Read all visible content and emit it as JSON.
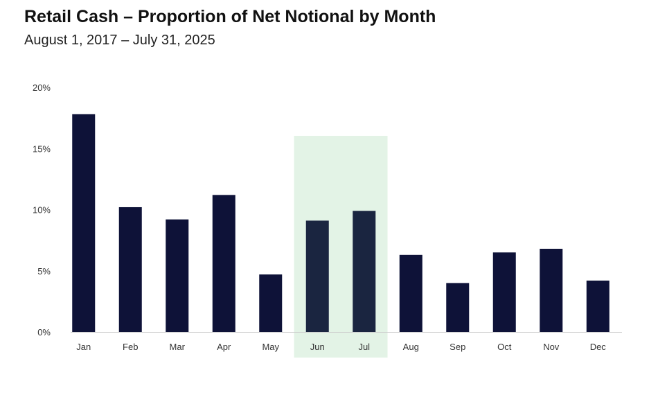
{
  "title": "Retail Cash – Proportion of Net Notional by Month",
  "subtitle": "August 1, 2017 – July 31, 2025",
  "chart_data": {
    "type": "bar",
    "categories": [
      "Jan",
      "Feb",
      "Mar",
      "Apr",
      "May",
      "Jun",
      "Jul",
      "Aug",
      "Sep",
      "Oct",
      "Nov",
      "Dec"
    ],
    "values": [
      17.8,
      10.2,
      9.2,
      11.2,
      4.7,
      9.1,
      9.9,
      6.3,
      4.0,
      6.5,
      6.8,
      4.2
    ],
    "unit": "%",
    "ylim": [
      0,
      20
    ],
    "yticks": [
      0,
      5,
      10,
      15,
      20
    ],
    "ytick_labels": [
      "0%",
      "5%",
      "10%",
      "15%",
      "20%"
    ],
    "highlight_categories": [
      "Jun",
      "Jul"
    ],
    "grid": false,
    "colors": {
      "bar": "#0e1238",
      "bar_highlight": "#1a2540",
      "highlight_band": "#e3f3e6",
      "axis": "#cccccc"
    }
  }
}
